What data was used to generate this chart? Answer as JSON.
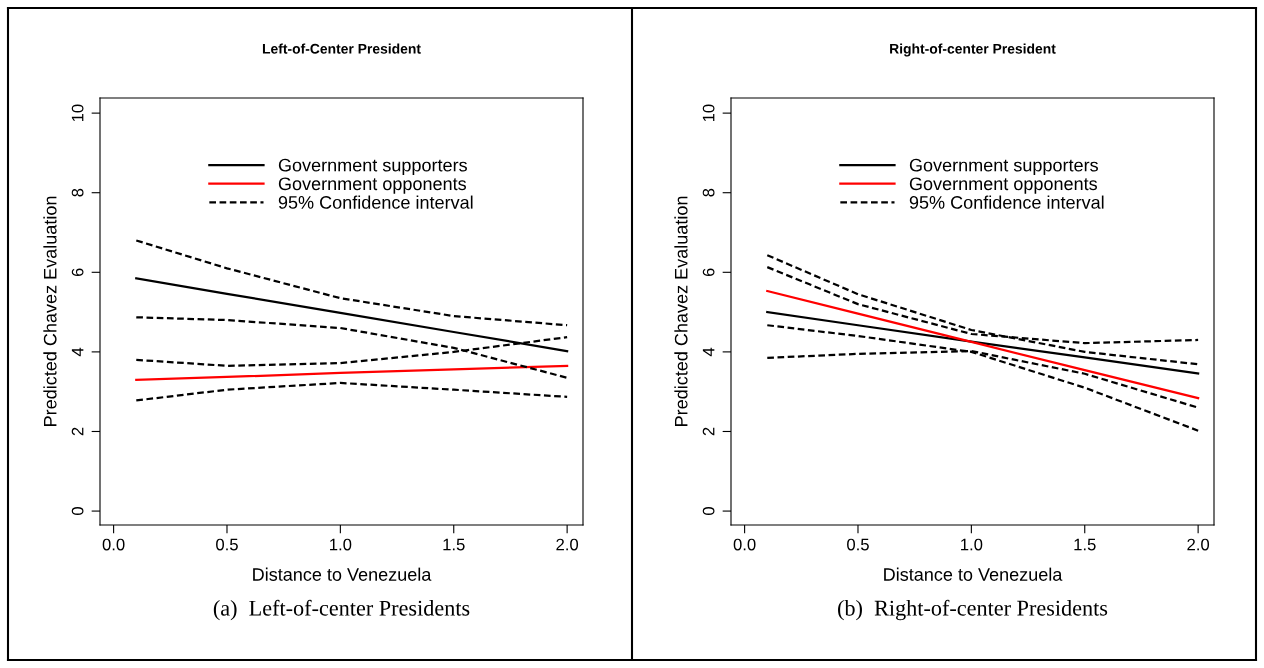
{
  "chart_data": [
    {
      "type": "line",
      "title": "Left-of-Center President",
      "xlabel": "Distance to Venezuela",
      "ylabel": "Predicted Chavez Evaluation",
      "annotations": [
        "(a)  Left-of-center Presidents"
      ],
      "x": [
        0.1,
        0.5,
        1.0,
        1.5,
        2.0
      ],
      "xlim": [
        -0.06,
        2.07
      ],
      "xticks": [
        {
          "value": 0,
          "label": "0.0"
        },
        {
          "value": 0.5,
          "label": "0.5"
        },
        {
          "value": 1,
          "label": "1.0"
        },
        {
          "value": 1.5,
          "label": "1.5"
        },
        {
          "value": 2,
          "label": "2.0"
        }
      ],
      "ylim": [
        -0.35,
        10.38
      ],
      "yticks": [
        0,
        2,
        4,
        6,
        8,
        10
      ],
      "legend": "top",
      "grid": false,
      "series": [
        {
          "name": "Government supporters",
          "color": "#000000",
          "line_style": "solid",
          "values": [
            5.85,
            5.46,
            4.98,
            4.5,
            4.02
          ]
        },
        {
          "name": "Government opponents",
          "color": "#ff0000",
          "line_style": "solid",
          "values": [
            3.3,
            3.37,
            3.47,
            3.56,
            3.65
          ]
        },
        {
          "name": "95% Confidence interval",
          "color": "#000000",
          "line_style": "dashed",
          "values": [
            6.8,
            6.1,
            5.35,
            4.9,
            4.67
          ]
        },
        {
          "color": "#000000",
          "line_style": "dashed",
          "values": [
            4.87,
            4.8,
            4.6,
            4.1,
            3.35
          ]
        },
        {
          "color": "#000000",
          "line_style": "dashed",
          "values": [
            3.8,
            3.65,
            3.72,
            4.0,
            4.37
          ]
        },
        {
          "color": "#000000",
          "line_style": "dashed",
          "values": [
            2.78,
            3.05,
            3.22,
            3.05,
            2.87
          ]
        }
      ]
    },
    {
      "type": "line",
      "title": "Right-of-center President",
      "xlabel": "Distance to Venezuela",
      "ylabel": "Predicted Chavez Evaluation",
      "annotations": [
        "(b)  Right-of-center Presidents"
      ],
      "x": [
        0.1,
        0.5,
        1.0,
        1.5,
        2.0
      ],
      "xlim": [
        -0.06,
        2.07
      ],
      "xticks": [
        {
          "value": 0,
          "label": "0.0"
        },
        {
          "value": 0.5,
          "label": "0.5"
        },
        {
          "value": 1,
          "label": "1.0"
        },
        {
          "value": 1.5,
          "label": "1.5"
        },
        {
          "value": 2,
          "label": "2.0"
        }
      ],
      "ylim": [
        -0.35,
        10.38
      ],
      "yticks": [
        0,
        2,
        4,
        6,
        8,
        10
      ],
      "legend": "top",
      "grid": false,
      "series": [
        {
          "name": "Government supporters",
          "color": "#000000",
          "line_style": "solid",
          "values": [
            5.0,
            4.67,
            4.26,
            3.86,
            3.46
          ]
        },
        {
          "name": "Government opponents",
          "color": "#ff0000",
          "line_style": "solid",
          "values": [
            5.53,
            4.96,
            4.25,
            3.54,
            2.84
          ]
        },
        {
          "name": "95% Confidence interval",
          "color": "#000000",
          "line_style": "dashed",
          "values": [
            6.13,
            5.2,
            4.45,
            4.22,
            4.3
          ]
        },
        {
          "color": "#000000",
          "line_style": "dashed",
          "values": [
            3.85,
            3.95,
            4.02,
            3.45,
            2.6
          ]
        },
        {
          "color": "#000000",
          "line_style": "dashed",
          "values": [
            6.43,
            5.45,
            4.55,
            4.0,
            3.69
          ]
        },
        {
          "color": "#000000",
          "line_style": "dashed",
          "values": [
            4.67,
            4.4,
            4.0,
            3.1,
            2.02
          ]
        }
      ]
    }
  ]
}
